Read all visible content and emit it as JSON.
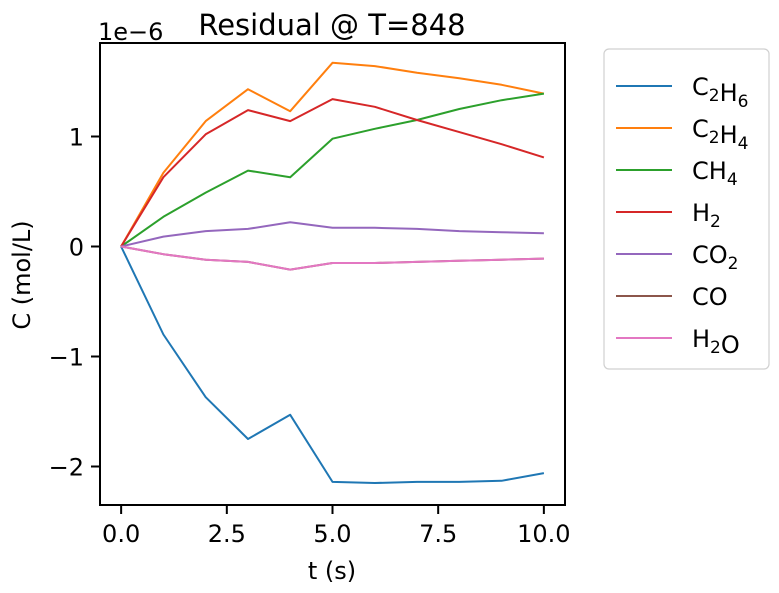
{
  "chart_data": {
    "type": "line",
    "title": "Residual @ T=848",
    "xlabel": "t (s)",
    "ylabel": "C (mol/L)",
    "y_offset_label": "1e−6",
    "xlim": [
      -0.5,
      10.5
    ],
    "ylim": [
      -2.35,
      1.85
    ],
    "x_ticks": [
      0,
      2.5,
      5,
      7.5,
      10
    ],
    "x_tick_labels": [
      "0.0",
      "2.5",
      "5.0",
      "7.5",
      "10.0"
    ],
    "y_ticks": [
      -2,
      -1,
      0,
      1
    ],
    "y_tick_labels": [
      "−2",
      "−1",
      "0",
      "1"
    ],
    "grid": false,
    "legend_position": "outside-right",
    "x": [
      0,
      1,
      2,
      3,
      4,
      5,
      6,
      7,
      8,
      9,
      10
    ],
    "series": [
      {
        "name_main": [
          "C",
          "H"
        ],
        "name_sub": [
          "2",
          "6"
        ],
        "color": "#1f77b4",
        "values": [
          0,
          -0.8,
          -1.37,
          -1.75,
          -1.53,
          -2.14,
          -2.15,
          -2.14,
          -2.14,
          -2.13,
          -2.06
        ]
      },
      {
        "name_main": [
          "C",
          "H"
        ],
        "name_sub": [
          "2",
          "4"
        ],
        "color": "#ff7f0e",
        "values": [
          0,
          0.67,
          1.14,
          1.43,
          1.23,
          1.67,
          1.64,
          1.58,
          1.53,
          1.47,
          1.39
        ]
      },
      {
        "name_main": [
          "CH"
        ],
        "name_sub": [
          "4"
        ],
        "color": "#2ca02c",
        "values": [
          0,
          0.27,
          0.49,
          0.69,
          0.63,
          0.98,
          1.07,
          1.15,
          1.25,
          1.33,
          1.39
        ]
      },
      {
        "name_main": [
          "H"
        ],
        "name_sub": [
          "2"
        ],
        "color": "#d62728",
        "values": [
          0,
          0.63,
          1.02,
          1.24,
          1.14,
          1.34,
          1.27,
          1.15,
          1.04,
          0.93,
          0.81
        ]
      },
      {
        "name_main": [
          "CO"
        ],
        "name_sub": [
          "2"
        ],
        "color": "#9467bd",
        "values": [
          0,
          0.09,
          0.14,
          0.16,
          0.22,
          0.17,
          0.17,
          0.16,
          0.14,
          0.13,
          0.12
        ]
      },
      {
        "name_main": [
          "CO"
        ],
        "name_sub": [],
        "color": "#8c564b",
        "values": [
          0,
          -0.07,
          -0.12,
          -0.14,
          -0.21,
          -0.15,
          -0.15,
          -0.14,
          -0.13,
          -0.12,
          -0.11
        ]
      },
      {
        "name_main": [
          "H",
          "O"
        ],
        "name_sub": [
          "2"
        ],
        "color": "#e377c2",
        "values": [
          0,
          -0.07,
          -0.12,
          -0.14,
          -0.21,
          -0.15,
          -0.15,
          -0.14,
          -0.13,
          -0.12,
          -0.11
        ]
      }
    ]
  }
}
